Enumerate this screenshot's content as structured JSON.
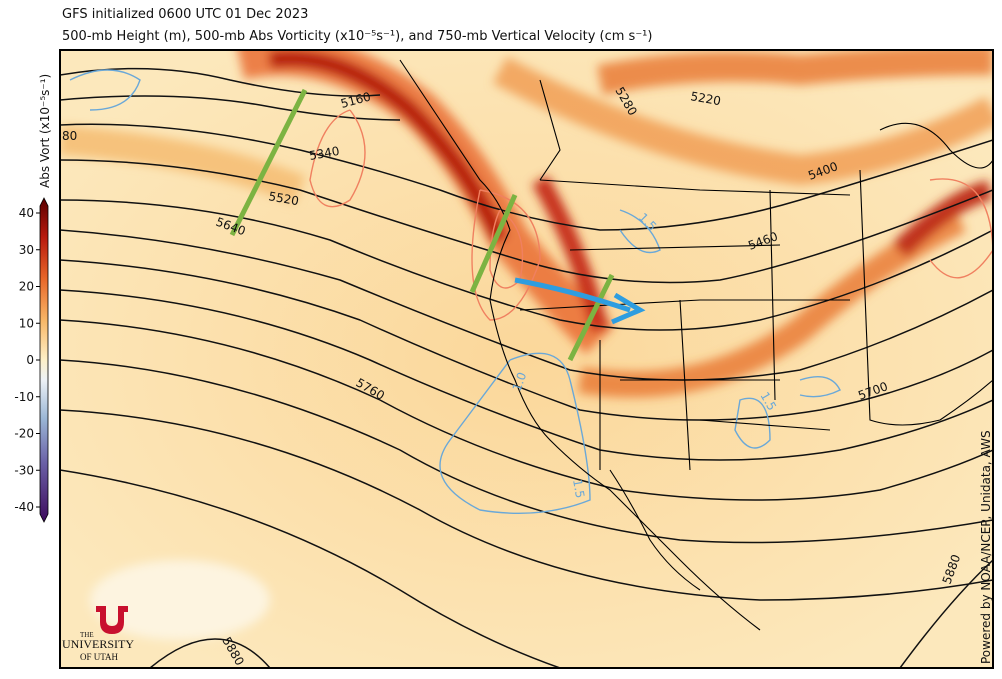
{
  "header": {
    "title": "GFS initialized 0600 UTC 01 Dec 2023",
    "subtitle": "500-mb Height (m), 500-mb Abs Vorticity (x10⁻⁵s⁻¹), and 750-mb Vertical Velocity (cm s⁻¹)"
  },
  "colorbar": {
    "label": "Abs Vort (x10⁻⁵s⁻¹)",
    "ticks": [
      40,
      30,
      20,
      10,
      0,
      -10,
      -20,
      -30,
      -40
    ]
  },
  "contour_labels": [
    "5160",
    "5340",
    "5520",
    "5640",
    "5760",
    "5880",
    "5280",
    "5220",
    "5400",
    "5460",
    "5700",
    "5880",
    "80"
  ],
  "velocity_labels": [
    "1.5",
    "1.0",
    "1.5",
    "1.5"
  ],
  "credit": "Powered by NOAA/NCEP, Unidata, AWS",
  "logo": {
    "line1": "THE",
    "line2": "UNIVERSITY",
    "line3": "OF UTAH"
  }
}
